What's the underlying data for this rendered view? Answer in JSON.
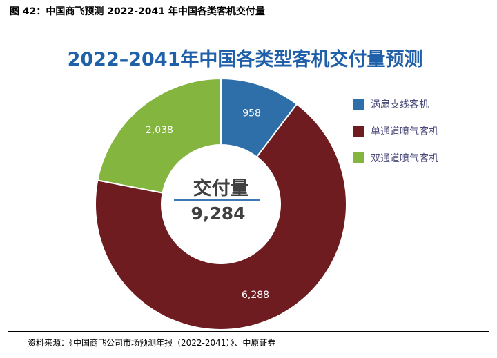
{
  "caption": "图 42：中国商飞预测 2022-2041 年中国各类客机交付量",
  "source": "资料来源：《中国商飞公司市场预测年报（2022-2041）》、中原证券",
  "chart_data": {
    "type": "pie",
    "title": "2022–2041年中国各类型客机交付量预测",
    "center_label": "交付量",
    "center_value": "9,284",
    "categories": [
      "涡扇支线客机",
      "单通道喷气客机",
      "双通道喷气客机"
    ],
    "values": [
      958,
      6288,
      2038
    ],
    "value_labels": [
      "958",
      "6,288",
      "2,038"
    ],
    "colors": [
      "#2e6faa",
      "#6e1c20",
      "#84b53f"
    ],
    "legend_position": "right"
  }
}
